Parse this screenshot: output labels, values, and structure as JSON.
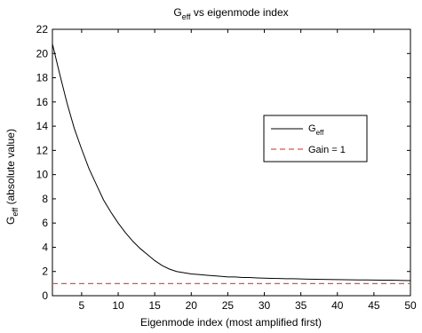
{
  "chart_data": {
    "type": "line",
    "title": {
      "main": "G",
      "sub": "eff",
      "rest": " vs eigenmode index"
    },
    "xlabel": "Eigenmode index (most amplified first)",
    "ylabel": {
      "main": "G",
      "sub": "eff",
      "rest": " (absolute value)"
    },
    "xlim": [
      1,
      50
    ],
    "ylim": [
      0,
      22
    ],
    "xticks": [
      5,
      10,
      15,
      20,
      25,
      30,
      35,
      40,
      45,
      50
    ],
    "yticks": [
      0,
      2,
      4,
      6,
      8,
      10,
      12,
      14,
      16,
      18,
      20,
      22
    ],
    "grid": false,
    "legend_position": "right",
    "series": [
      {
        "name": {
          "main": "G",
          "sub": "eff"
        },
        "color": "#000000",
        "style": "solid",
        "x": [
          1,
          2,
          3,
          4,
          5,
          6,
          7,
          8,
          9,
          10,
          11,
          12,
          13,
          14,
          15,
          16,
          17,
          18,
          19,
          20,
          21,
          22,
          23,
          24,
          25,
          26,
          27,
          28,
          29,
          30,
          31,
          32,
          33,
          34,
          35,
          36,
          37,
          38,
          39,
          40,
          41,
          42,
          43,
          44,
          45,
          46,
          47,
          48,
          49,
          50
        ],
        "y": [
          20.8,
          18.3,
          15.9,
          13.8,
          12.1,
          10.5,
          9.2,
          7.9,
          6.9,
          6.0,
          5.2,
          4.5,
          3.9,
          3.4,
          2.9,
          2.5,
          2.2,
          2.0,
          1.9,
          1.8,
          1.75,
          1.7,
          1.65,
          1.6,
          1.55,
          1.55,
          1.5,
          1.5,
          1.47,
          1.45,
          1.43,
          1.42,
          1.4,
          1.4,
          1.38,
          1.37,
          1.36,
          1.35,
          1.34,
          1.33,
          1.32,
          1.31,
          1.3,
          1.3,
          1.29,
          1.28,
          1.28,
          1.27,
          1.26,
          1.25
        ]
      },
      {
        "name": "Gain = 1",
        "color": "#e0504a",
        "style": "dashed",
        "x": [
          1,
          50
        ],
        "y": [
          1,
          1
        ]
      }
    ]
  }
}
